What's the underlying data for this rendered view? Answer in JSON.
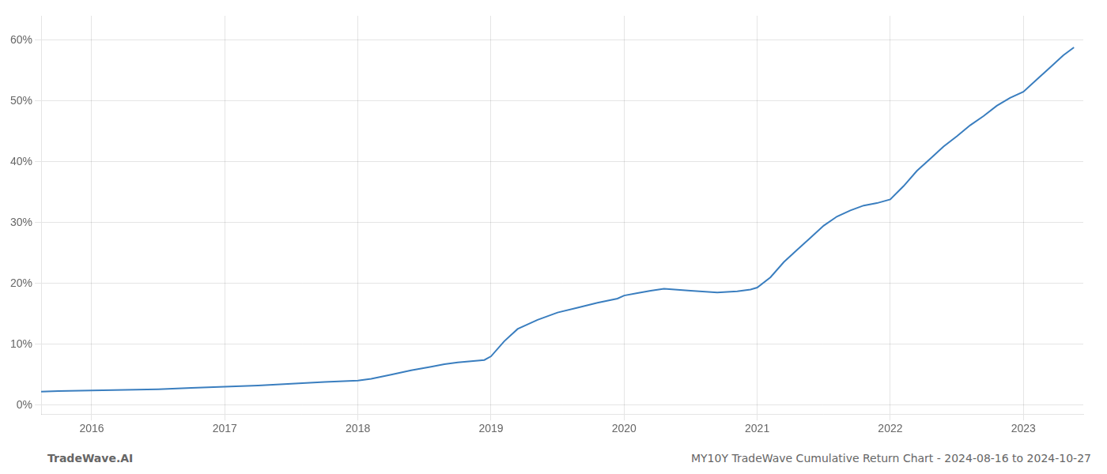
{
  "chart_data": {
    "type": "line",
    "annotations": [
      {
        "text": "TradeWave.AI"
      },
      {
        "text": "MY10Y TradeWave Cumulative Return Chart - 2024-08-16 to 2024-10-27"
      }
    ],
    "x": [
      2015.62,
      2015.75,
      2016.0,
      2016.25,
      2016.5,
      2016.75,
      2017.0,
      2017.25,
      2017.5,
      2017.75,
      2018.0,
      2018.1,
      2018.25,
      2018.4,
      2018.55,
      2018.65,
      2018.75,
      2018.85,
      2018.95,
      2019.0,
      2019.1,
      2019.2,
      2019.35,
      2019.5,
      2019.65,
      2019.8,
      2019.95,
      2020.0,
      2020.1,
      2020.2,
      2020.3,
      2020.5,
      2020.7,
      2020.85,
      2020.95,
      2021.0,
      2021.1,
      2021.2,
      2021.3,
      2021.4,
      2021.5,
      2021.6,
      2021.7,
      2021.8,
      2021.9,
      2022.0,
      2022.1,
      2022.2,
      2022.3,
      2022.4,
      2022.5,
      2022.6,
      2022.7,
      2022.8,
      2022.9,
      2023.0,
      2023.1,
      2023.2,
      2023.3,
      2023.38
    ],
    "values": [
      2.2,
      2.3,
      2.4,
      2.5,
      2.6,
      2.8,
      3.0,
      3.2,
      3.5,
      3.8,
      4.0,
      4.3,
      5.0,
      5.7,
      6.3,
      6.7,
      7.0,
      7.2,
      7.4,
      8.0,
      10.5,
      12.5,
      14.0,
      15.2,
      16.0,
      16.8,
      17.5,
      18.0,
      18.4,
      18.8,
      19.1,
      18.8,
      18.5,
      18.7,
      19.0,
      19.3,
      21.0,
      23.5,
      25.5,
      27.5,
      29.5,
      31.0,
      32.0,
      32.8,
      33.2,
      33.8,
      36.0,
      38.5,
      40.5,
      42.5,
      44.2,
      46.0,
      47.5,
      49.2,
      50.5,
      51.5,
      53.5,
      55.5,
      57.5,
      58.8
    ],
    "color": "#3a7ebf",
    "xlim": [
      2015.62,
      2023.45
    ],
    "xticks": [
      2016,
      2017,
      2018,
      2019,
      2020,
      2021,
      2022,
      2023
    ],
    "ylim": [
      -1.5,
      64
    ],
    "yticks": [
      {
        "value": 0,
        "label": "0%"
      },
      {
        "value": 10,
        "label": "10%"
      },
      {
        "value": 20,
        "label": "20%"
      },
      {
        "value": 30,
        "label": "30%"
      },
      {
        "value": 40,
        "label": "40%"
      },
      {
        "value": 50,
        "label": "50%"
      },
      {
        "value": 60,
        "label": "60%"
      }
    ],
    "grid": true
  }
}
